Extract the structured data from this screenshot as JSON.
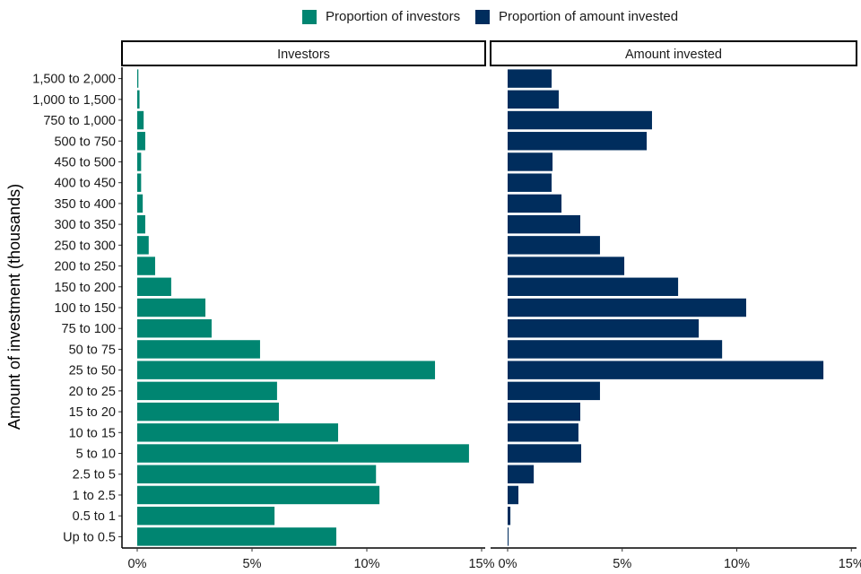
{
  "chart_data": {
    "type": "bar",
    "orientation": "horizontal",
    "title": "",
    "ylabel": "Amount of investment (thousands)",
    "xlabel": "",
    "legend": {
      "placement": "top",
      "entries": [
        {
          "label": "Proportion of investors",
          "color": "#008571"
        },
        {
          "label": "Proportion of amount invested",
          "color": "#002D5D"
        }
      ]
    },
    "categories": [
      "Up to 0.5",
      "0.5 to 1",
      "1 to 2.5",
      "2.5 to 5",
      "5 to 10",
      "10 to 15",
      "15 to 20",
      "20 to 25",
      "25 to 50",
      "50 to 75",
      "75 to 100",
      "100 to 150",
      "150 to 200",
      "200 to 250",
      "250 to 300",
      "300 to 350",
      "350 to 400",
      "400 to 450",
      "450 to 500",
      "500 to 750",
      "750 to 1,000",
      "1,000 to 1,500",
      "1,500 to 2,000"
    ],
    "facets": [
      {
        "title": "Investors",
        "series_name": "Proportion of investors",
        "color": "#008571",
        "values": [
          8.67,
          5.98,
          10.55,
          10.4,
          14.45,
          8.75,
          6.17,
          6.09,
          12.97,
          5.35,
          3.24,
          2.97,
          1.48,
          0.78,
          0.5,
          0.35,
          0.24,
          0.17,
          0.17,
          0.35,
          0.28,
          0.1,
          0.05
        ]
      },
      {
        "title": "Amount invested",
        "series_name": "Proportion of amount invested",
        "color": "#002D5D",
        "values": [
          0.04,
          0.12,
          0.47,
          1.14,
          3.21,
          3.09,
          3.17,
          4.03,
          13.78,
          9.36,
          8.34,
          10.41,
          7.44,
          5.09,
          4.03,
          3.17,
          2.35,
          1.92,
          1.96,
          6.07,
          6.3,
          2.23,
          1.92
        ]
      }
    ],
    "xlim": [
      0,
      15
    ],
    "xticks": [
      0,
      5,
      10,
      15
    ],
    "xtick_labels": [
      "0%",
      "5%",
      "10%",
      "15%"
    ],
    "grid": false
  }
}
